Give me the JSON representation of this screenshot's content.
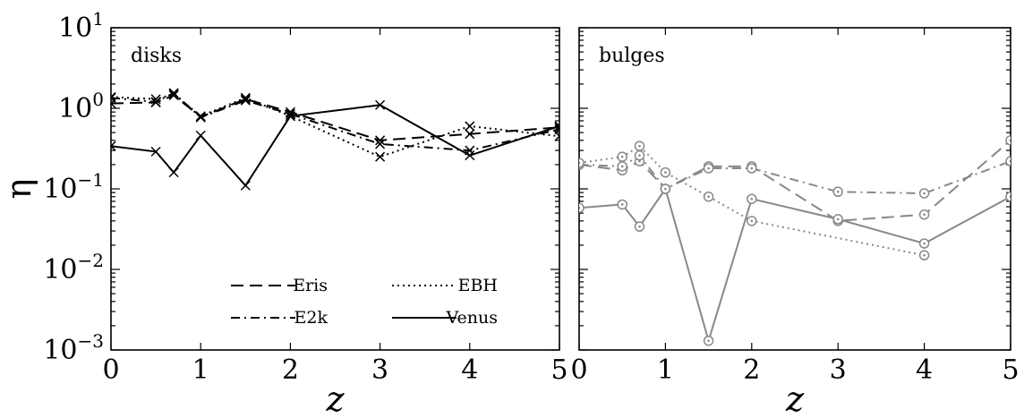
{
  "chart_data": [
    {
      "type": "line",
      "panel_label": "disks",
      "xlabel": "z",
      "ylabel": "η",
      "xlim": [
        0,
        5
      ],
      "ylim": [
        0.001,
        10
      ],
      "yscale": "log",
      "xticks": [
        "0",
        "1",
        "2",
        "3",
        "4",
        "5"
      ],
      "yticks": [
        {
          "value": 0.001,
          "base": "10",
          "exp": "−3"
        },
        {
          "value": 0.01,
          "base": "10",
          "exp": "−2"
        },
        {
          "value": 0.1,
          "base": "10",
          "exp": "−1"
        },
        {
          "value": 1,
          "base": "10",
          "exp": "0"
        },
        {
          "value": 10,
          "base": "10",
          "exp": "1"
        }
      ],
      "color": "#000000",
      "marker": "x",
      "series": [
        {
          "name": "Eris",
          "style": "dashed",
          "x": [
            0,
            0.5,
            0.7,
            1,
            1.5,
            2,
            3,
            4,
            5
          ],
          "y": [
            1.15,
            1.18,
            1.45,
            0.78,
            1.3,
            0.9,
            0.4,
            0.48,
            0.58
          ]
        },
        {
          "name": "E2k",
          "style": "dashdot",
          "x": [
            0,
            0.5,
            0.7,
            1,
            1.5,
            2,
            3,
            4,
            5
          ],
          "y": [
            1.35,
            1.2,
            1.55,
            0.77,
            1.25,
            0.85,
            0.36,
            0.3,
            0.55
          ]
        },
        {
          "name": "EBH",
          "style": "dotted",
          "x": [
            0,
            0.5,
            0.7,
            1,
            1.5,
            2,
            3,
            4,
            5
          ],
          "y": [
            1.38,
            1.3,
            1.5,
            0.8,
            1.35,
            0.8,
            0.25,
            0.6,
            0.45
          ]
        },
        {
          "name": "Venus",
          "style": "solid",
          "x": [
            0,
            0.5,
            0.7,
            1,
            1.5,
            2,
            3,
            4,
            5
          ],
          "y": [
            0.34,
            0.29,
            0.16,
            0.46,
            0.11,
            0.8,
            1.1,
            0.26,
            0.6
          ]
        }
      ],
      "legend": {
        "placement": "lower-center",
        "columns": 2
      }
    },
    {
      "type": "line",
      "panel_label": "bulges",
      "xlabel": "z",
      "xlim": [
        0,
        5
      ],
      "ylim": [
        0.001,
        10
      ],
      "yscale": "log",
      "xticks": [
        "0",
        "1",
        "2",
        "3",
        "4",
        "5"
      ],
      "color": "#888888",
      "marker": "o",
      "series": [
        {
          "name": "Eris",
          "style": "dashed",
          "x": [
            0,
            0.5,
            0.7,
            1,
            1.5,
            2,
            3,
            4,
            5
          ],
          "y": [
            0.2,
            0.17,
            0.22,
            0.1,
            0.19,
            0.19,
            0.04,
            0.048,
            0.4
          ]
        },
        {
          "name": "E2k",
          "style": "dashdot",
          "x": [
            0,
            0.5,
            0.7,
            1,
            1.5,
            2,
            3,
            4,
            5
          ],
          "y": [
            0.2,
            0.19,
            0.26,
            0.1,
            0.18,
            0.18,
            0.092,
            0.088,
            0.22
          ]
        },
        {
          "name": "EBH",
          "style": "dotted",
          "x": [
            0,
            0.5,
            0.7,
            1,
            1.5,
            2,
            4
          ],
          "y": [
            0.21,
            0.25,
            0.34,
            0.16,
            0.08,
            0.04,
            0.015
          ]
        },
        {
          "name": "Venus",
          "style": "solid",
          "x": [
            0,
            0.5,
            0.7,
            1,
            1.5,
            2,
            3,
            4,
            5
          ],
          "y": [
            0.058,
            0.064,
            0.034,
            0.1,
            0.0013,
            0.075,
            0.042,
            0.021,
            0.08
          ]
        }
      ]
    }
  ]
}
